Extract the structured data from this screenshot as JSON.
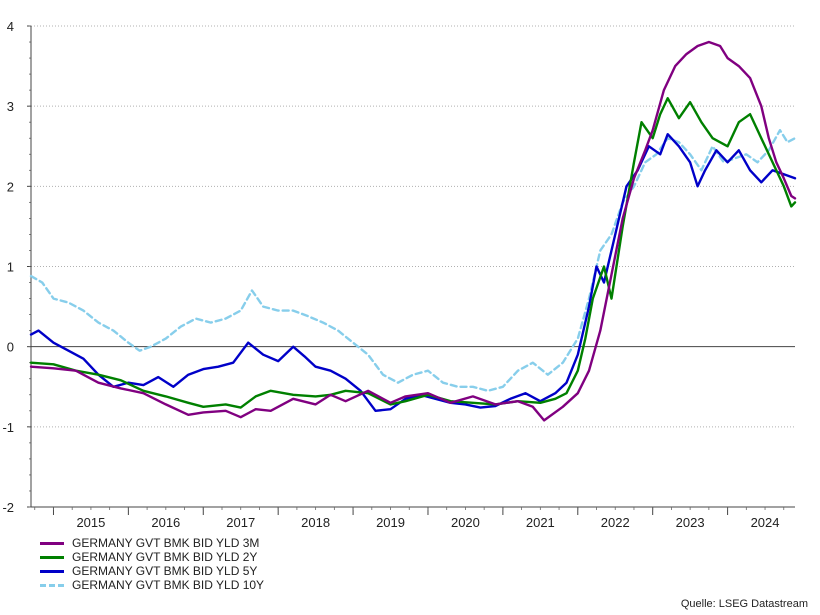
{
  "chart_data": {
    "type": "line",
    "x_unit": "year",
    "x_ticks": [
      "2015",
      "2016",
      "2017",
      "2018",
      "2019",
      "2020",
      "2021",
      "2022",
      "2023",
      "2024"
    ],
    "xlim": [
      2014.7,
      2024.9
    ],
    "ylim": [
      -2,
      4
    ],
    "y_ticks": [
      4,
      3,
      2,
      1,
      0,
      -1,
      -2
    ],
    "grid": "horizontal-dotted",
    "legend_position": "bottom-left",
    "series": [
      {
        "name": "GERMANY GVT BMK BID YLD 3M",
        "color": "#800080",
        "style": "solid",
        "points": [
          [
            2014.7,
            -0.25
          ],
          [
            2015.0,
            -0.27
          ],
          [
            2015.3,
            -0.3
          ],
          [
            2015.6,
            -0.45
          ],
          [
            2015.9,
            -0.52
          ],
          [
            2016.2,
            -0.58
          ],
          [
            2016.5,
            -0.72
          ],
          [
            2016.8,
            -0.85
          ],
          [
            2017.0,
            -0.82
          ],
          [
            2017.3,
            -0.8
          ],
          [
            2017.5,
            -0.88
          ],
          [
            2017.7,
            -0.78
          ],
          [
            2017.9,
            -0.8
          ],
          [
            2018.2,
            -0.65
          ],
          [
            2018.5,
            -0.72
          ],
          [
            2018.7,
            -0.6
          ],
          [
            2018.9,
            -0.68
          ],
          [
            2019.2,
            -0.55
          ],
          [
            2019.5,
            -0.7
          ],
          [
            2019.7,
            -0.62
          ],
          [
            2020.0,
            -0.58
          ],
          [
            2020.3,
            -0.7
          ],
          [
            2020.6,
            -0.62
          ],
          [
            2020.9,
            -0.72
          ],
          [
            2021.2,
            -0.68
          ],
          [
            2021.4,
            -0.75
          ],
          [
            2021.55,
            -0.92
          ],
          [
            2021.8,
            -0.75
          ],
          [
            2022.0,
            -0.58
          ],
          [
            2022.15,
            -0.3
          ],
          [
            2022.3,
            0.2
          ],
          [
            2022.45,
            0.9
          ],
          [
            2022.6,
            1.6
          ],
          [
            2022.75,
            2.1
          ],
          [
            2022.9,
            2.45
          ],
          [
            2023.0,
            2.7
          ],
          [
            2023.15,
            3.2
          ],
          [
            2023.3,
            3.5
          ],
          [
            2023.45,
            3.65
          ],
          [
            2023.6,
            3.75
          ],
          [
            2023.75,
            3.8
          ],
          [
            2023.9,
            3.75
          ],
          [
            2024.0,
            3.6
          ],
          [
            2024.15,
            3.5
          ],
          [
            2024.3,
            3.35
          ],
          [
            2024.45,
            3.0
          ],
          [
            2024.55,
            2.6
          ],
          [
            2024.65,
            2.3
          ],
          [
            2024.75,
            2.1
          ],
          [
            2024.85,
            1.88
          ],
          [
            2024.9,
            1.85
          ]
        ]
      },
      {
        "name": "GERMANY GVT BMK BID YLD 2Y",
        "color": "#008000",
        "style": "solid",
        "points": [
          [
            2014.7,
            -0.2
          ],
          [
            2015.0,
            -0.22
          ],
          [
            2015.3,
            -0.3
          ],
          [
            2015.6,
            -0.35
          ],
          [
            2015.9,
            -0.42
          ],
          [
            2016.2,
            -0.55
          ],
          [
            2016.5,
            -0.62
          ],
          [
            2016.8,
            -0.7
          ],
          [
            2017.0,
            -0.75
          ],
          [
            2017.3,
            -0.72
          ],
          [
            2017.5,
            -0.76
          ],
          [
            2017.7,
            -0.62
          ],
          [
            2017.9,
            -0.55
          ],
          [
            2018.2,
            -0.6
          ],
          [
            2018.5,
            -0.62
          ],
          [
            2018.7,
            -0.6
          ],
          [
            2018.9,
            -0.55
          ],
          [
            2019.2,
            -0.58
          ],
          [
            2019.5,
            -0.72
          ],
          [
            2019.7,
            -0.68
          ],
          [
            2020.0,
            -0.6
          ],
          [
            2020.3,
            -0.68
          ],
          [
            2020.6,
            -0.7
          ],
          [
            2020.9,
            -0.72
          ],
          [
            2021.2,
            -0.68
          ],
          [
            2021.5,
            -0.7
          ],
          [
            2021.7,
            -0.65
          ],
          [
            2021.85,
            -0.58
          ],
          [
            2022.0,
            -0.3
          ],
          [
            2022.1,
            0.1
          ],
          [
            2022.2,
            0.6
          ],
          [
            2022.35,
            1.0
          ],
          [
            2022.45,
            0.6
          ],
          [
            2022.6,
            1.5
          ],
          [
            2022.75,
            2.3
          ],
          [
            2022.85,
            2.8
          ],
          [
            2023.0,
            2.6
          ],
          [
            2023.1,
            2.9
          ],
          [
            2023.2,
            3.1
          ],
          [
            2023.35,
            2.85
          ],
          [
            2023.5,
            3.05
          ],
          [
            2023.65,
            2.8
          ],
          [
            2023.8,
            2.6
          ],
          [
            2024.0,
            2.5
          ],
          [
            2024.15,
            2.8
          ],
          [
            2024.3,
            2.9
          ],
          [
            2024.45,
            2.6
          ],
          [
            2024.55,
            2.4
          ],
          [
            2024.65,
            2.2
          ],
          [
            2024.75,
            2.0
          ],
          [
            2024.85,
            1.75
          ],
          [
            2024.9,
            1.8
          ]
        ]
      },
      {
        "name": "GERMANY GVT BMK BID YLD 5Y",
        "color": "#0000c8",
        "style": "solid",
        "points": [
          [
            2014.7,
            0.15
          ],
          [
            2014.8,
            0.2
          ],
          [
            2015.0,
            0.05
          ],
          [
            2015.2,
            -0.05
          ],
          [
            2015.4,
            -0.15
          ],
          [
            2015.6,
            -0.35
          ],
          [
            2015.8,
            -0.5
          ],
          [
            2016.0,
            -0.45
          ],
          [
            2016.2,
            -0.48
          ],
          [
            2016.4,
            -0.38
          ],
          [
            2016.6,
            -0.5
          ],
          [
            2016.8,
            -0.35
          ],
          [
            2017.0,
            -0.28
          ],
          [
            2017.2,
            -0.25
          ],
          [
            2017.4,
            -0.2
          ],
          [
            2017.6,
            0.05
          ],
          [
            2017.8,
            -0.1
          ],
          [
            2018.0,
            -0.18
          ],
          [
            2018.2,
            0.0
          ],
          [
            2018.35,
            -0.12
          ],
          [
            2018.5,
            -0.25
          ],
          [
            2018.7,
            -0.3
          ],
          [
            2018.9,
            -0.4
          ],
          [
            2019.1,
            -0.55
          ],
          [
            2019.3,
            -0.8
          ],
          [
            2019.5,
            -0.78
          ],
          [
            2019.7,
            -0.65
          ],
          [
            2019.9,
            -0.6
          ],
          [
            2020.1,
            -0.65
          ],
          [
            2020.3,
            -0.7
          ],
          [
            2020.5,
            -0.72
          ],
          [
            2020.7,
            -0.76
          ],
          [
            2020.9,
            -0.74
          ],
          [
            2021.1,
            -0.65
          ],
          [
            2021.3,
            -0.58
          ],
          [
            2021.5,
            -0.68
          ],
          [
            2021.7,
            -0.58
          ],
          [
            2021.85,
            -0.45
          ],
          [
            2022.0,
            -0.1
          ],
          [
            2022.15,
            0.5
          ],
          [
            2022.25,
            1.0
          ],
          [
            2022.35,
            0.8
          ],
          [
            2022.45,
            1.2
          ],
          [
            2022.55,
            1.6
          ],
          [
            2022.65,
            2.0
          ],
          [
            2022.8,
            2.2
          ],
          [
            2022.95,
            2.5
          ],
          [
            2023.1,
            2.4
          ],
          [
            2023.2,
            2.65
          ],
          [
            2023.35,
            2.5
          ],
          [
            2023.5,
            2.3
          ],
          [
            2023.6,
            2.0
          ],
          [
            2023.7,
            2.2
          ],
          [
            2023.85,
            2.45
          ],
          [
            2024.0,
            2.3
          ],
          [
            2024.15,
            2.45
          ],
          [
            2024.3,
            2.2
          ],
          [
            2024.45,
            2.05
          ],
          [
            2024.6,
            2.2
          ],
          [
            2024.75,
            2.15
          ],
          [
            2024.9,
            2.1
          ]
        ]
      },
      {
        "name": "GERMANY GVT BMK BID YLD 10Y",
        "color": "#87ceeb",
        "style": "dashed",
        "points": [
          [
            2014.7,
            0.88
          ],
          [
            2014.85,
            0.8
          ],
          [
            2015.0,
            0.6
          ],
          [
            2015.2,
            0.55
          ],
          [
            2015.4,
            0.45
          ],
          [
            2015.6,
            0.3
          ],
          [
            2015.8,
            0.2
          ],
          [
            2016.0,
            0.05
          ],
          [
            2016.15,
            -0.05
          ],
          [
            2016.3,
            0.0
          ],
          [
            2016.5,
            0.1
          ],
          [
            2016.7,
            0.25
          ],
          [
            2016.9,
            0.35
          ],
          [
            2017.1,
            0.3
          ],
          [
            2017.3,
            0.35
          ],
          [
            2017.5,
            0.45
          ],
          [
            2017.65,
            0.7
          ],
          [
            2017.8,
            0.5
          ],
          [
            2018.0,
            0.45
          ],
          [
            2018.2,
            0.45
          ],
          [
            2018.4,
            0.38
          ],
          [
            2018.6,
            0.3
          ],
          [
            2018.8,
            0.2
          ],
          [
            2019.0,
            0.05
          ],
          [
            2019.2,
            -0.1
          ],
          [
            2019.4,
            -0.35
          ],
          [
            2019.6,
            -0.45
          ],
          [
            2019.8,
            -0.35
          ],
          [
            2020.0,
            -0.3
          ],
          [
            2020.2,
            -0.45
          ],
          [
            2020.4,
            -0.5
          ],
          [
            2020.6,
            -0.5
          ],
          [
            2020.8,
            -0.55
          ],
          [
            2021.0,
            -0.5
          ],
          [
            2021.2,
            -0.3
          ],
          [
            2021.4,
            -0.2
          ],
          [
            2021.6,
            -0.35
          ],
          [
            2021.8,
            -0.2
          ],
          [
            2022.0,
            0.1
          ],
          [
            2022.15,
            0.6
          ],
          [
            2022.3,
            1.2
          ],
          [
            2022.45,
            1.4
          ],
          [
            2022.6,
            1.8
          ],
          [
            2022.75,
            2.0
          ],
          [
            2022.9,
            2.3
          ],
          [
            2023.05,
            2.4
          ],
          [
            2023.2,
            2.6
          ],
          [
            2023.35,
            2.55
          ],
          [
            2023.5,
            2.4
          ],
          [
            2023.65,
            2.2
          ],
          [
            2023.8,
            2.5
          ],
          [
            2023.95,
            2.3
          ],
          [
            2024.1,
            2.35
          ],
          [
            2024.25,
            2.4
          ],
          [
            2024.4,
            2.3
          ],
          [
            2024.55,
            2.45
          ],
          [
            2024.7,
            2.7
          ],
          [
            2024.8,
            2.55
          ],
          [
            2024.9,
            2.6
          ]
        ]
      }
    ]
  },
  "source_label": "Quelle: LSEG Datastream"
}
